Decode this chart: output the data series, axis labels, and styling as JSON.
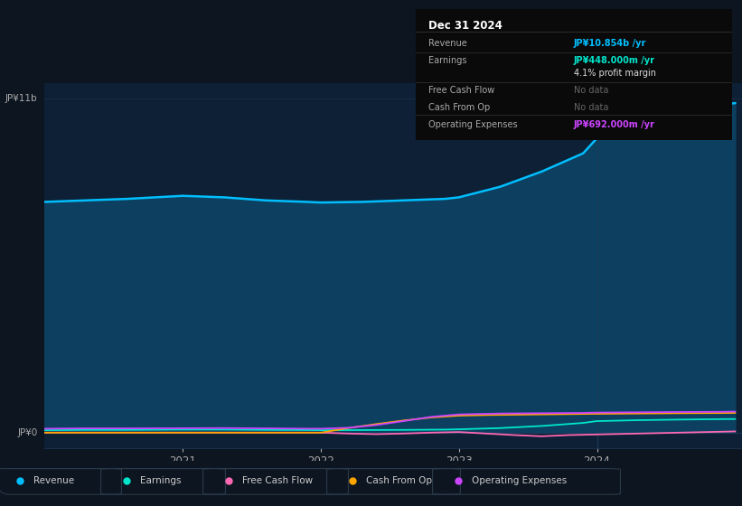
{
  "bg_color": "#0d1520",
  "chart_bg": "#0d2035",
  "grid_color": "#1e3a5a",
  "ylabel_top": "JP¥11b",
  "ylabel_bottom": "JP¥0",
  "x_ticks": [
    2021,
    2022,
    2023,
    2024
  ],
  "tooltip": {
    "date": "Dec 31 2024",
    "rows": [
      {
        "label": "Revenue",
        "value": "JP¥10.854b /yr",
        "value_color": "#00bfff"
      },
      {
        "label": "Earnings",
        "value": "JP¥448.000m /yr",
        "value_color": "#00e5cc"
      },
      {
        "label": "",
        "value": "4.1% profit margin",
        "value_color": "#dddddd"
      },
      {
        "label": "Free Cash Flow",
        "value": "No data",
        "value_color": "#666666"
      },
      {
        "label": "Cash From Op",
        "value": "No data",
        "value_color": "#666666"
      },
      {
        "label": "Operating Expenses",
        "value": "JP¥692.000m /yr",
        "value_color": "#cc44ff"
      }
    ]
  },
  "legend": [
    {
      "label": "Revenue",
      "color": "#00bfff"
    },
    {
      "label": "Earnings",
      "color": "#00e5cc"
    },
    {
      "label": "Free Cash Flow",
      "color": "#ff69b4"
    },
    {
      "label": "Cash From Op",
      "color": "#ffa500"
    },
    {
      "label": "Operating Expenses",
      "color": "#cc44ff"
    }
  ],
  "revenue_x": [
    2020.0,
    2020.3,
    2020.6,
    2021.0,
    2021.3,
    2021.6,
    2021.9,
    2022.0,
    2022.3,
    2022.6,
    2022.9,
    2023.0,
    2023.3,
    2023.6,
    2023.9,
    2024.0,
    2024.3,
    2024.6,
    2024.9,
    2025.0
  ],
  "revenue_y": [
    7.6,
    7.65,
    7.7,
    7.8,
    7.75,
    7.65,
    7.6,
    7.58,
    7.6,
    7.65,
    7.7,
    7.75,
    8.1,
    8.6,
    9.2,
    9.7,
    10.15,
    10.5,
    10.8,
    10.854
  ],
  "earnings_x": [
    2020.0,
    2020.3,
    2020.6,
    2021.0,
    2021.3,
    2021.6,
    2021.9,
    2022.0,
    2022.3,
    2022.6,
    2022.9,
    2023.0,
    2023.3,
    2023.6,
    2023.9,
    2024.0,
    2024.3,
    2024.6,
    2024.9,
    2025.0
  ],
  "earnings_y": [
    0.08,
    0.09,
    0.09,
    0.1,
    0.1,
    0.09,
    0.085,
    0.08,
    0.085,
    0.09,
    0.1,
    0.11,
    0.15,
    0.22,
    0.32,
    0.38,
    0.41,
    0.43,
    0.445,
    0.448
  ],
  "fcf_x": [
    2020.0,
    2020.5,
    2021.0,
    2021.5,
    2022.0,
    2022.2,
    2022.4,
    2022.6,
    2022.8,
    2023.0,
    2023.2,
    2023.4,
    2023.6,
    2023.8,
    2024.0,
    2024.3,
    2024.6,
    2024.9,
    2025.0
  ],
  "fcf_y": [
    0.0,
    0.0,
    0.0,
    0.0,
    0.0,
    -0.03,
    -0.05,
    -0.03,
    0.0,
    0.02,
    -0.03,
    -0.08,
    -0.12,
    -0.08,
    -0.06,
    -0.03,
    0.0,
    0.03,
    0.04
  ],
  "cfo_x": [
    2020.0,
    2020.5,
    2021.0,
    2021.5,
    2022.0,
    2022.2,
    2022.4,
    2022.6,
    2022.8,
    2023.0,
    2023.2,
    2023.4,
    2023.6,
    2023.8,
    2024.0,
    2024.3,
    2024.6,
    2024.9,
    2025.0
  ],
  "cfo_y": [
    0.0,
    0.0,
    0.0,
    0.0,
    0.0,
    0.15,
    0.28,
    0.4,
    0.5,
    0.56,
    0.58,
    0.59,
    0.6,
    0.61,
    0.62,
    0.63,
    0.64,
    0.645,
    0.65
  ],
  "opex_x": [
    2020.0,
    2020.3,
    2020.6,
    2021.0,
    2021.3,
    2021.6,
    2021.9,
    2022.0,
    2022.2,
    2022.4,
    2022.6,
    2022.8,
    2023.0,
    2023.3,
    2023.6,
    2023.9,
    2024.0,
    2024.3,
    2024.6,
    2024.9,
    2025.0
  ],
  "opex_y": [
    0.13,
    0.14,
    0.14,
    0.145,
    0.15,
    0.14,
    0.13,
    0.13,
    0.16,
    0.25,
    0.38,
    0.52,
    0.6,
    0.63,
    0.64,
    0.65,
    0.66,
    0.67,
    0.68,
    0.685,
    0.692
  ],
  "rev_color": "#00bfff",
  "rev_fill": "#0d4060",
  "earn_color": "#00e5cc",
  "fcf_color": "#ff69b4",
  "cfo_color": "#ffa500",
  "opex_color": "#cc44ff",
  "xmin": 2020.0,
  "xmax": 2025.05,
  "ymin": -0.5,
  "ymax": 11.5
}
